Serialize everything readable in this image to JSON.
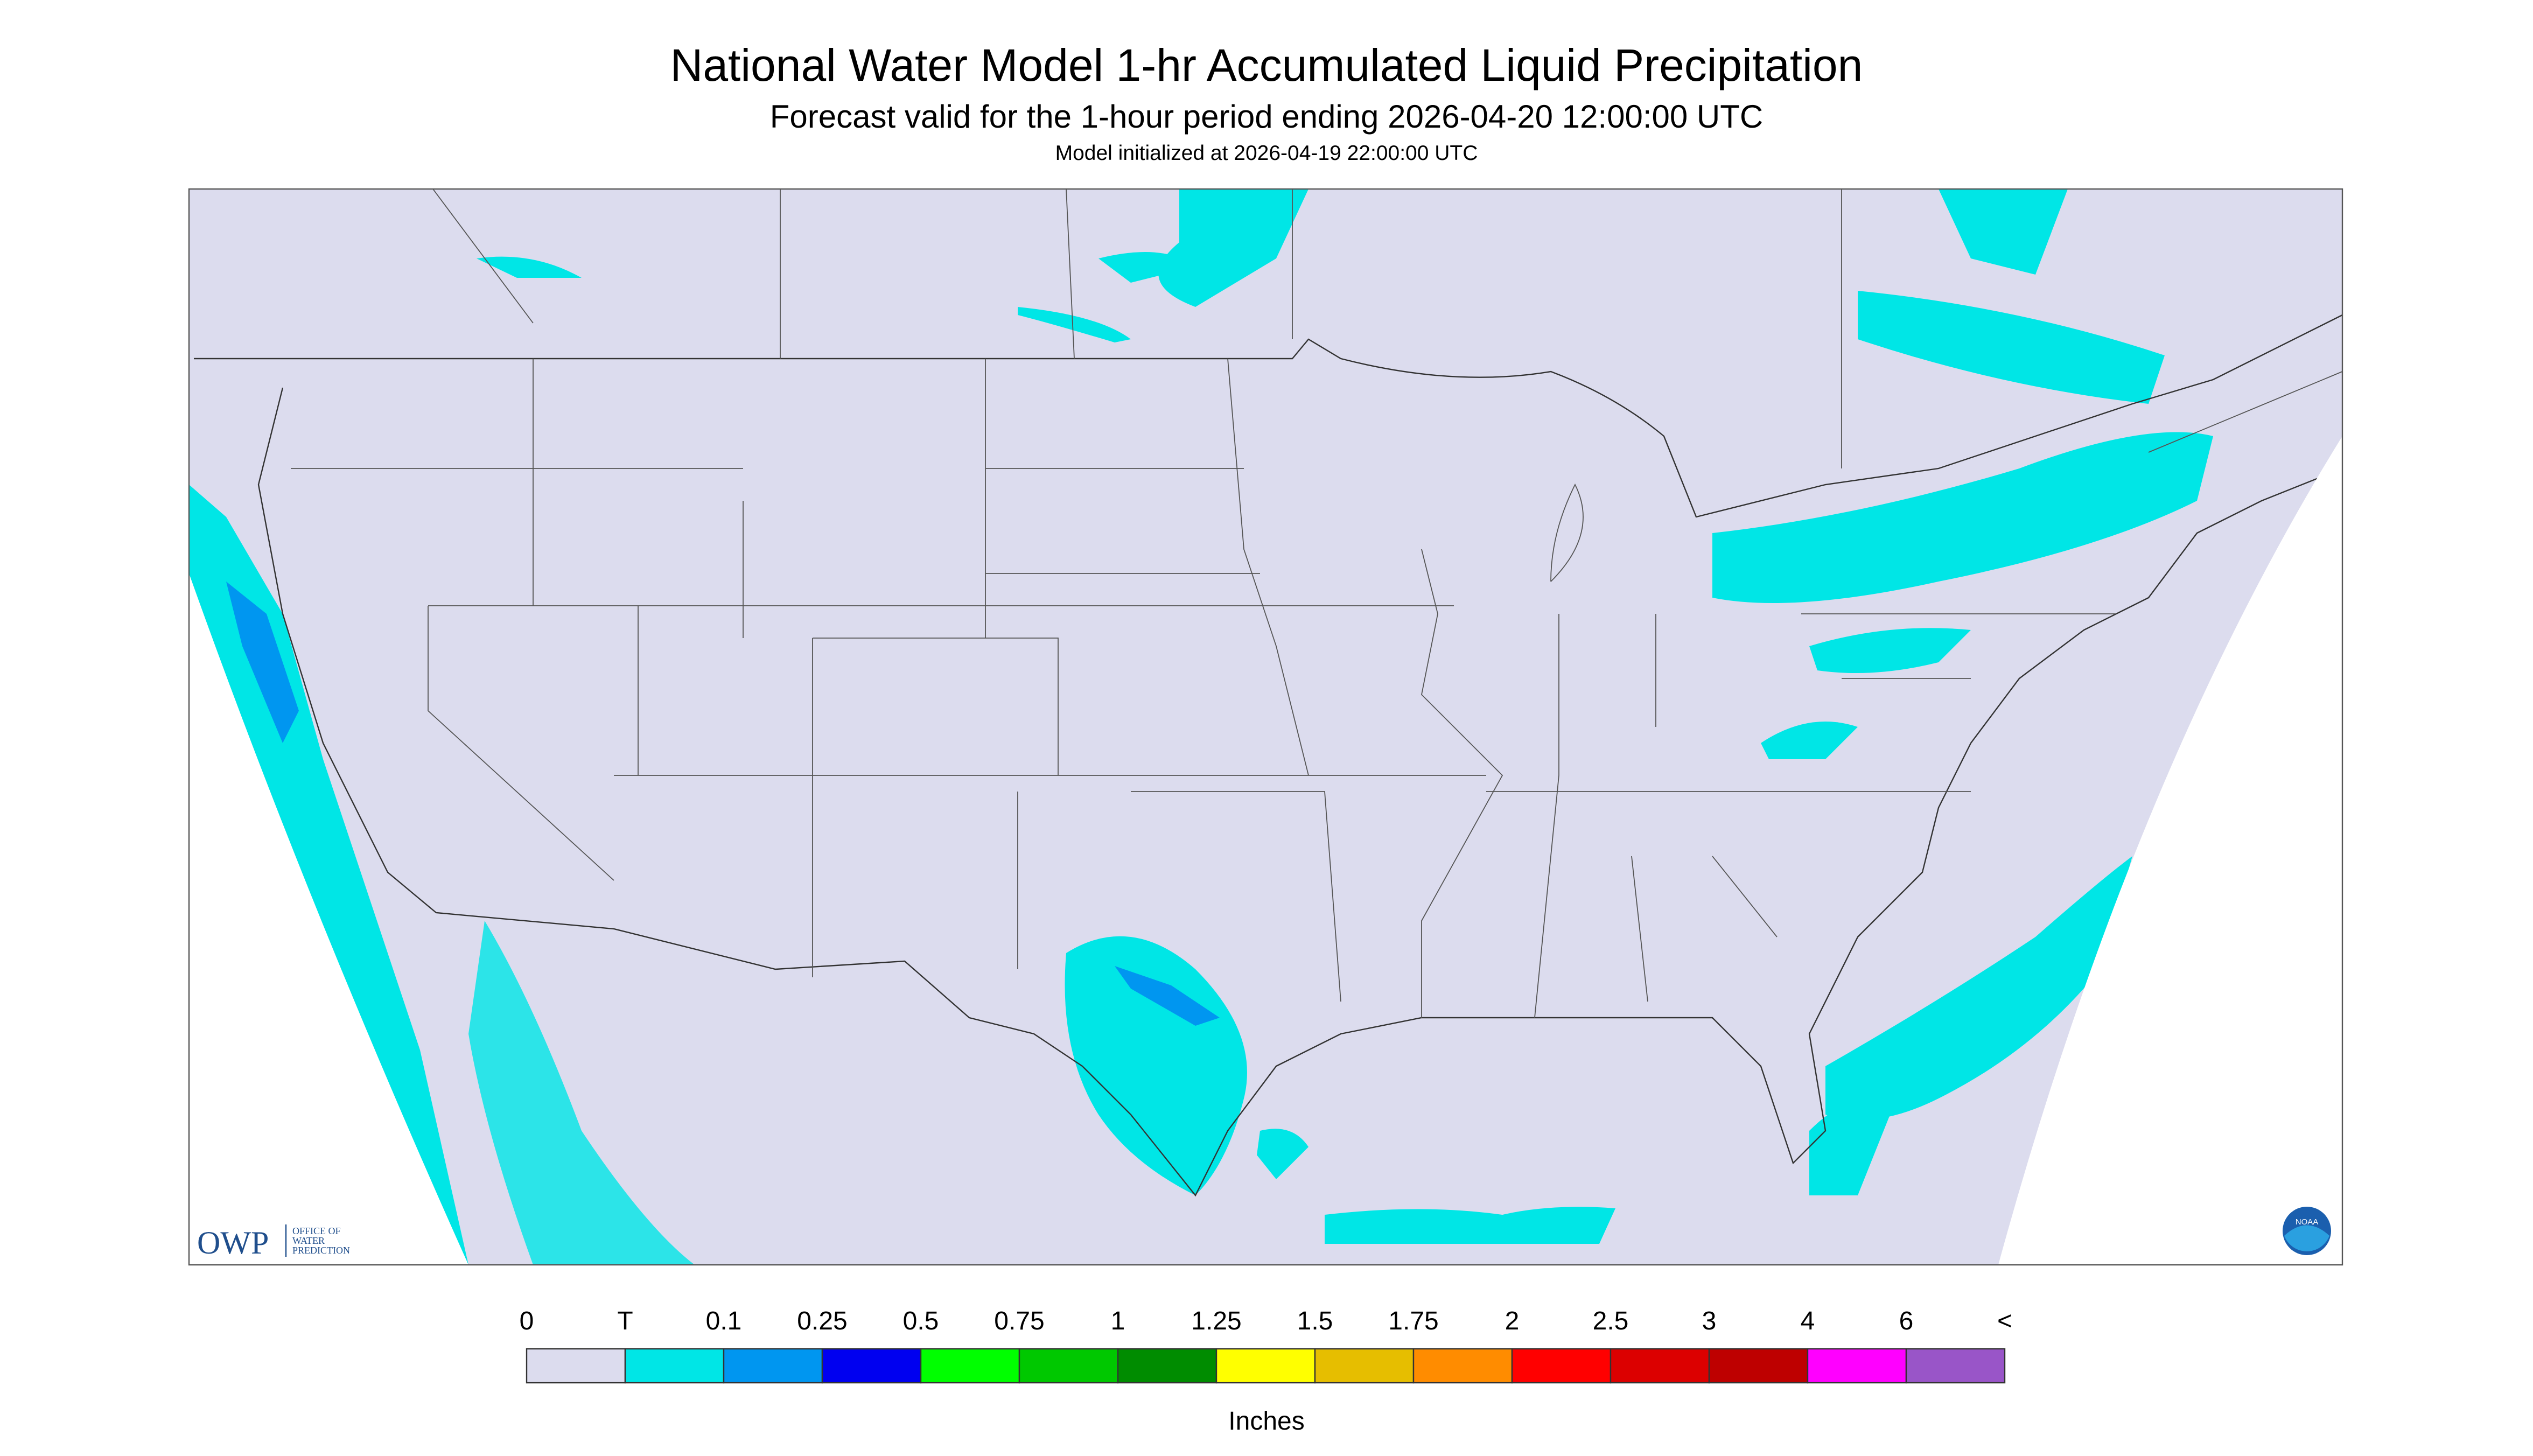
{
  "header": {
    "title": "National Water Model 1-hr Accumulated Liquid Precipitation",
    "subtitle": "Forecast valid for the 1-hour period ending 2026-04-20 12:00:00 UTC",
    "note": "Model initialized at 2026-04-19 22:00:00 UTC"
  },
  "legend": {
    "labels": [
      "0",
      "T",
      "0.1",
      "0.25",
      "0.5",
      "0.75",
      "1",
      "1.25",
      "1.5",
      "1.75",
      "2",
      "2.5",
      "3",
      "4",
      "6",
      "<"
    ],
    "colors": [
      "#dcdcee",
      "#00e6e6",
      "#0096f0",
      "#0000f0",
      "#00ff00",
      "#00c800",
      "#008c00",
      "#ffff00",
      "#e6be00",
      "#ff8c00",
      "#ff0000",
      "#dc0000",
      "#be0000",
      "#ff00ff",
      "#9955c8"
    ],
    "unit": "Inches"
  },
  "logos": {
    "owp": "OWP",
    "owp_name": [
      "OFFICE OF",
      "WATER",
      "PREDICTION"
    ],
    "noaa": "NOAA"
  }
}
